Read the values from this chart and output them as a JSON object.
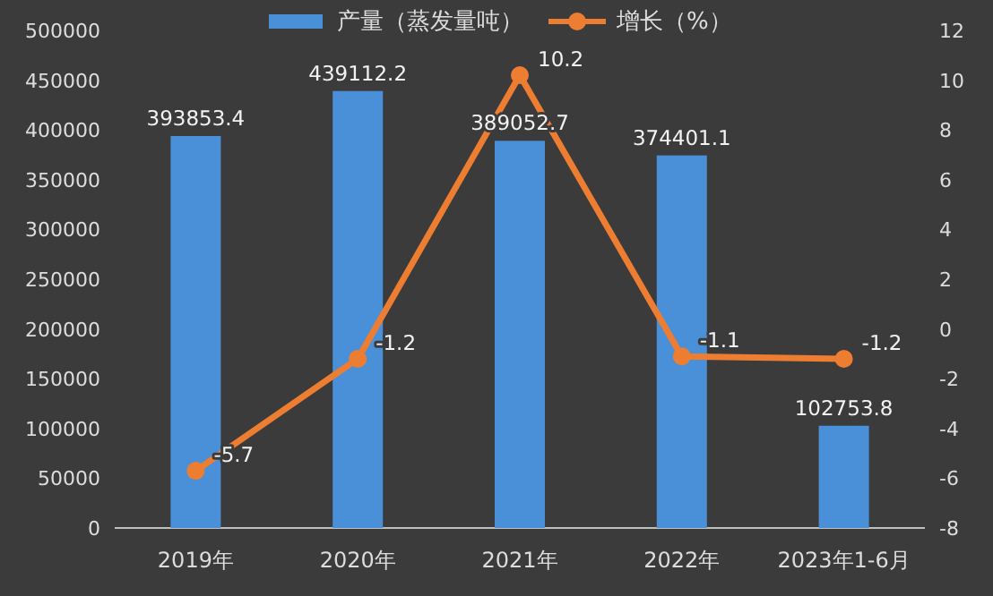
{
  "chart_data": {
    "type": "bar",
    "categories": [
      "2019年",
      "2020年",
      "2021年",
      "2022年",
      "2023年1-6月"
    ],
    "series": [
      {
        "name": "产量（蒸发量吨）",
        "color": "#4a90d9",
        "values": [
          393853.4,
          439112.2,
          389052.7,
          374401.1,
          102753.8
        ]
      },
      {
        "name": "增长（%）",
        "type": "line",
        "axis": "y2",
        "color": "#ed7d31",
        "marker": "circle",
        "values": [
          -5.7,
          -1.2,
          10.2,
          -1.1,
          -1.2
        ]
      }
    ],
    "ylim": [
      0,
      500000
    ],
    "yticks": [
      0,
      50000,
      100000,
      150000,
      200000,
      250000,
      300000,
      350000,
      400000,
      450000,
      500000
    ],
    "y2lim": [
      -8,
      12
    ],
    "y2ticks": [
      -8,
      -6,
      -4,
      -2,
      0,
      2,
      4,
      6,
      8,
      10,
      12
    ],
    "data_labels": true,
    "legend": "top",
    "grid": false
  }
}
